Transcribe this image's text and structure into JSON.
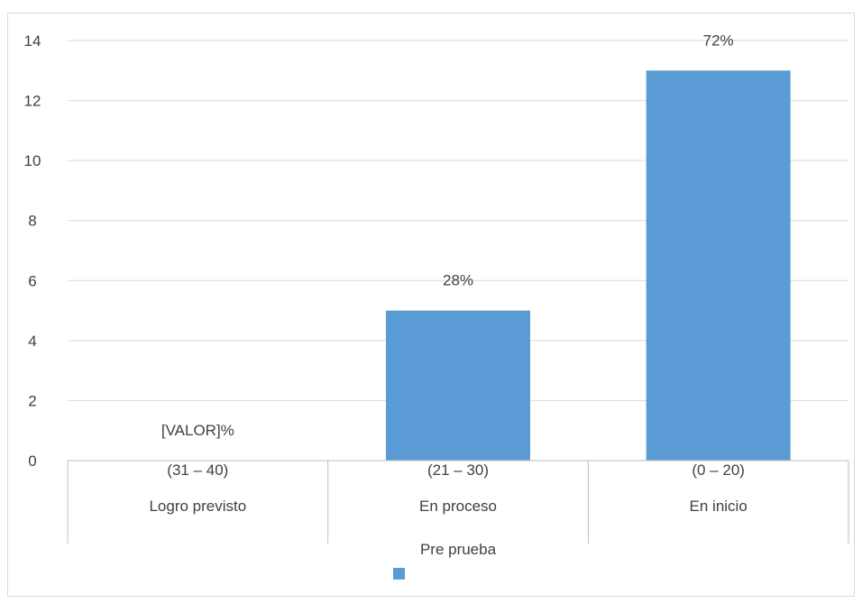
{
  "chart_data": {
    "type": "bar",
    "categories": [
      "(31 – 40)",
      "(21 – 30)",
      "(0 – 20)"
    ],
    "groups": [
      "Logro previsto",
      "En proceso",
      "En inicio"
    ],
    "series": [
      {
        "name": "Pre prueba",
        "values": [
          0,
          5,
          13
        ],
        "labels": [
          "[VALOR]%",
          "28%",
          "72%"
        ]
      }
    ],
    "ylim": [
      0,
      14
    ],
    "yticks": [
      0,
      2,
      4,
      6,
      8,
      10,
      12,
      14
    ],
    "grid": true,
    "legend": "bottom",
    "bar_color": "#5b9bd5",
    "grid_color": "#d9d9d9",
    "axis_color": "#bfbfbf"
  }
}
